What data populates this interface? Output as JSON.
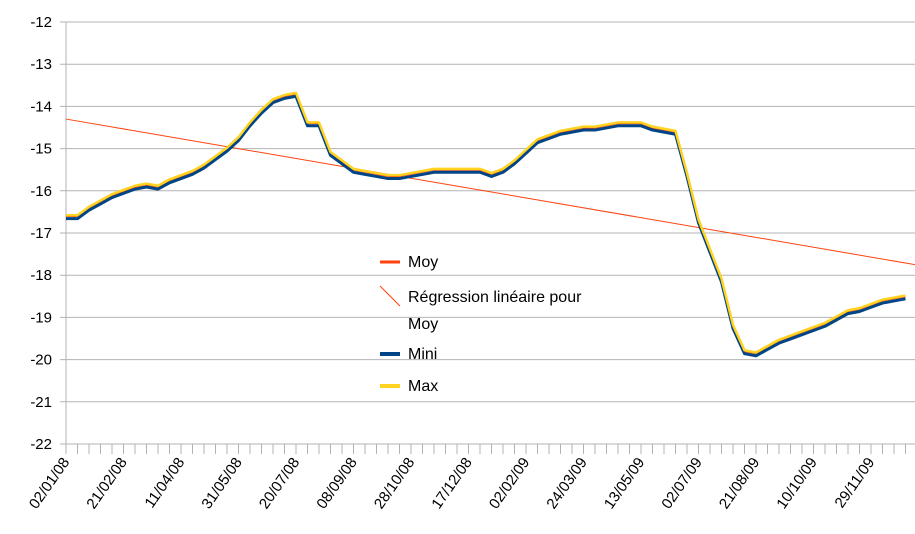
{
  "chart_data": {
    "type": "line",
    "categories": [
      "02/01/08",
      null,
      null,
      null,
      null,
      "21/02/08",
      null,
      null,
      null,
      null,
      "11/04/08",
      null,
      null,
      null,
      null,
      "31/05/08",
      null,
      null,
      null,
      null,
      "20/07/08",
      null,
      null,
      null,
      null,
      "08/09/08",
      null,
      null,
      null,
      null,
      "28/10/08",
      null,
      null,
      null,
      null,
      "17/12/08",
      null,
      null,
      null,
      null,
      "02/02/09",
      null,
      null,
      null,
      null,
      "24/03/09",
      null,
      null,
      null,
      null,
      "13/05/09",
      null,
      null,
      null,
      null,
      "02/07/09",
      null,
      null,
      null,
      null,
      "21/08/09",
      null,
      null,
      null,
      null,
      "10/10/09",
      null,
      null,
      null,
      null,
      "29/11/09",
      null,
      null,
      null
    ],
    "series": [
      {
        "name": "Moy",
        "color": "#ff420e",
        "values": [
          -16.6,
          -16.6,
          -16.4,
          -16.25,
          -16.1,
          -16.0,
          -15.9,
          -15.85,
          -15.9,
          -15.75,
          -15.65,
          -15.55,
          -15.4,
          -15.2,
          -15.0,
          -14.75,
          -14.4,
          -14.1,
          -13.85,
          -13.75,
          -13.7,
          -14.4,
          -14.4,
          -15.1,
          -15.3,
          -15.5,
          -15.55,
          -15.6,
          -15.65,
          -15.65,
          -15.6,
          -15.55,
          -15.5,
          -15.5,
          -15.5,
          -15.5,
          -15.5,
          -15.6,
          -15.5,
          -15.3,
          -15.05,
          -14.8,
          -14.7,
          -14.6,
          -14.55,
          -14.5,
          -14.5,
          -14.45,
          -14.4,
          -14.4,
          -14.4,
          -14.5,
          -14.55,
          -14.6,
          -15.6,
          -16.7,
          -17.4,
          -18.1,
          -19.2,
          -19.8,
          -19.85,
          -19.7,
          -19.55,
          -19.45,
          -19.35,
          -19.25,
          -19.15,
          -19.0,
          -18.85,
          -18.8,
          -18.7,
          -18.6,
          -18.55,
          -18.5
        ]
      },
      {
        "name": "Mini",
        "color": "#004586",
        "values": [
          -16.66,
          -16.66,
          -16.46,
          -16.31,
          -16.16,
          -16.06,
          -15.96,
          -15.91,
          -15.96,
          -15.81,
          -15.71,
          -15.61,
          -15.46,
          -15.26,
          -15.06,
          -14.81,
          -14.46,
          -14.16,
          -13.91,
          -13.81,
          -13.76,
          -14.46,
          -14.46,
          -15.16,
          -15.36,
          -15.56,
          -15.61,
          -15.66,
          -15.71,
          -15.71,
          -15.66,
          -15.61,
          -15.56,
          -15.56,
          -15.56,
          -15.56,
          -15.56,
          -15.66,
          -15.56,
          -15.36,
          -15.11,
          -14.86,
          -14.76,
          -14.66,
          -14.61,
          -14.56,
          -14.56,
          -14.51,
          -14.46,
          -14.46,
          -14.46,
          -14.56,
          -14.61,
          -14.66,
          -15.66,
          -16.76,
          -17.46,
          -18.16,
          -19.26,
          -19.86,
          -19.91,
          -19.76,
          -19.61,
          -19.51,
          -19.41,
          -19.31,
          -19.21,
          -19.06,
          -18.91,
          -18.86,
          -18.76,
          -18.66,
          -18.61,
          -18.56
        ]
      },
      {
        "name": "Max",
        "color": "#ffd320",
        "values": [
          -16.58,
          -16.58,
          -16.38,
          -16.23,
          -16.08,
          -15.98,
          -15.88,
          -15.83,
          -15.88,
          -15.73,
          -15.63,
          -15.53,
          -15.38,
          -15.18,
          -14.98,
          -14.73,
          -14.38,
          -14.08,
          -13.83,
          -13.73,
          -13.68,
          -14.38,
          -14.38,
          -15.08,
          -15.28,
          -15.48,
          -15.53,
          -15.58,
          -15.63,
          -15.63,
          -15.58,
          -15.53,
          -15.48,
          -15.48,
          -15.48,
          -15.48,
          -15.48,
          -15.58,
          -15.48,
          -15.28,
          -15.03,
          -14.78,
          -14.68,
          -14.58,
          -14.53,
          -14.48,
          -14.48,
          -14.43,
          -14.38,
          -14.38,
          -14.38,
          -14.48,
          -14.53,
          -14.58,
          -15.58,
          -16.68,
          -17.38,
          -18.08,
          -19.18,
          -19.78,
          -19.83,
          -19.68,
          -19.53,
          -19.43,
          -19.33,
          -19.23,
          -19.13,
          -18.98,
          -18.83,
          -18.78,
          -18.68,
          -18.58,
          -18.53,
          -18.48
        ]
      }
    ],
    "trendline": {
      "name": "Régression linéaire pour Moy",
      "color": "#ff420e",
      "start": -14.3,
      "end": -17.75
    },
    "ylim": [
      -22,
      -12
    ],
    "yticks": [
      -12,
      -13,
      -14,
      -15,
      -16,
      -17,
      -18,
      -19,
      -20,
      -21,
      -22
    ],
    "grid": true
  }
}
